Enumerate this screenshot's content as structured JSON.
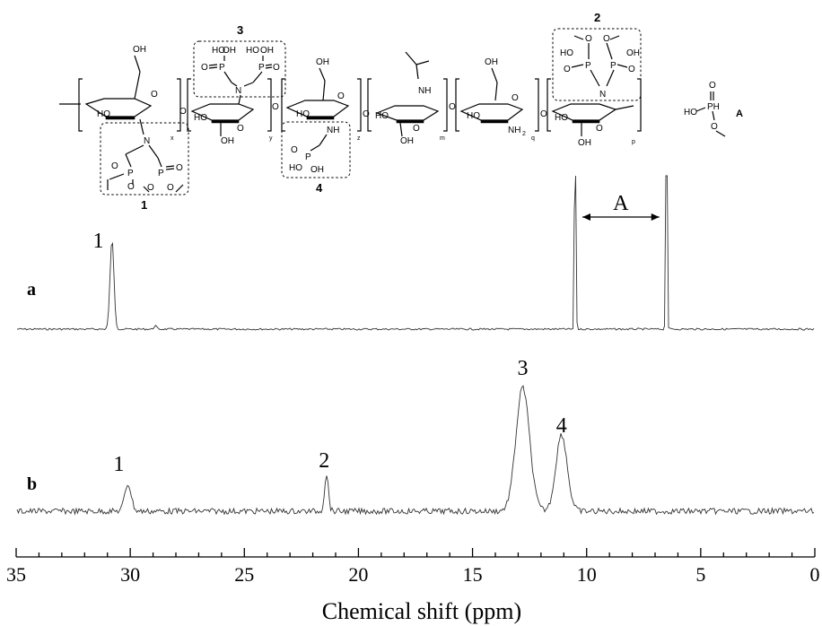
{
  "structure": {
    "unit_labels": [
      "1",
      "2",
      "3",
      "4"
    ],
    "unit1_atoms": {
      "ho": "HO",
      "n": "N",
      "o_ring": "O",
      "p1": "P",
      "p2": "P",
      "p_oxo": "O",
      "sub": "x"
    },
    "unit2_atoms": {
      "oh1": "HO",
      "oh2": "OH",
      "p1": "P",
      "p2": "P",
      "n": "N",
      "o_ring": "O",
      "oh_ring": "HO",
      "oh_low": "OH",
      "sub": "p"
    },
    "unit3_atoms": {
      "oh1": "OH",
      "ho1": "HO",
      "oh2": "OH",
      "p1": "P",
      "p2": "P",
      "oxo1": "O",
      "oxo2": "O",
      "n": "N",
      "ho_ring": "HO",
      "o_ring": "O",
      "oh_low": "OH",
      "sub": "y"
    },
    "unit4_atoms": {
      "oh": "OH",
      "ho": "HO",
      "nh": "NH",
      "p": "P",
      "oxo": "O",
      "o_ring": "O",
      "oh_low": "OH",
      "sub": "z"
    },
    "acetyl_unit_atoms": {
      "nh": "NH",
      "ho": "HO",
      "o_ring": "O",
      "oh_low": "OH",
      "sub": "m"
    },
    "amine_unit_atoms": {
      "oh": "OH",
      "ho": "HO",
      "nh2": "NH",
      "nh2_sub": "2",
      "o_ring": "O",
      "sub": "q"
    },
    "linker_o": "O",
    "compound_A": {
      "label": "A",
      "o_top": "O",
      "ph": "PH",
      "ho": "HO",
      "o": "O"
    }
  },
  "chart_data": {
    "type": "line",
    "xlabel": "Chemical shift (ppm)",
    "xlim": [
      35,
      0
    ],
    "x_ticks": [
      35,
      30,
      25,
      20,
      15,
      10,
      5,
      0
    ],
    "x_tick_labels": [
      "35",
      "30",
      "25",
      "20",
      "15",
      "10",
      "5",
      "0"
    ],
    "series": [
      {
        "name": "a",
        "peaks": [
          {
            "label": "1",
            "ppm": 30.8,
            "height": 1.0,
            "width": 0.12
          },
          {
            "label": "",
            "ppm": 28.9,
            "height": 0.04,
            "width": 0.08
          },
          {
            "label": "",
            "ppm": 10.5,
            "height": 3.5,
            "width": 0.04
          },
          {
            "label": "",
            "ppm": 6.5,
            "height": 3.5,
            "width": 0.04
          }
        ]
      },
      {
        "name": "b",
        "peaks": [
          {
            "label": "1",
            "ppm": 30.1,
            "height": 0.22,
            "width": 0.2
          },
          {
            "label": "2",
            "ppm": 21.4,
            "height": 0.3,
            "width": 0.12
          },
          {
            "label": "3",
            "ppm": 12.8,
            "height": 1.0,
            "width": 0.42
          },
          {
            "label": "4",
            "ppm": 11.1,
            "height": 0.62,
            "width": 0.35
          }
        ]
      }
    ],
    "annotations": [
      {
        "label": "A",
        "from_ppm": 10.5,
        "to_ppm": 6.5,
        "type": "double-arrow"
      }
    ]
  }
}
